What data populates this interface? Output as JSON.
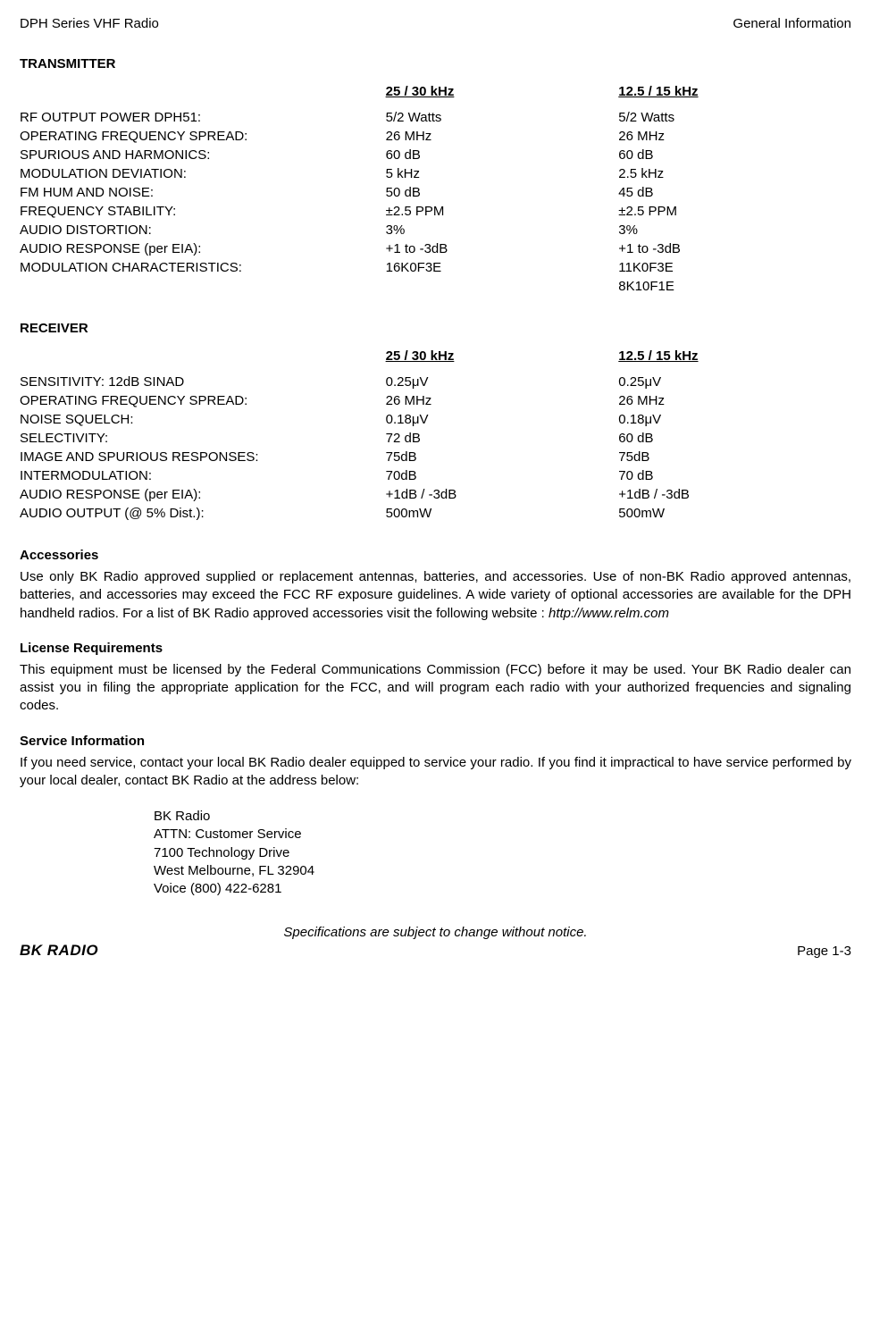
{
  "header": {
    "left": "DPH Series VHF Radio",
    "right": "General Information"
  },
  "transmitter": {
    "title": "TRANSMITTER",
    "col1_header": "25 / 30 kHz",
    "col2_header": "12.5 / 15 kHz",
    "rows": [
      {
        "label": "RF OUTPUT POWER DPH51:",
        "v1": "5/2 Watts",
        "v2": "5/2 Watts",
        "gap": true
      },
      {
        "label": "OPERATING FREQUENCY SPREAD:",
        "v1": "26 MHz",
        "v2": "26 MHz"
      },
      {
        "label": "SPURIOUS AND HARMONICS:",
        "v1": "60 dB",
        "v2": "60 dB"
      },
      {
        "label": "MODULATION DEVIATION:",
        "v1": "5 kHz",
        "v2": "2.5 kHz"
      },
      {
        "label": "FM HUM AND NOISE:",
        "v1": "50 dB",
        "v2": "45 dB"
      },
      {
        "label": "FREQUENCY STABILITY:",
        "v1": "±2.5 PPM",
        "v2": "±2.5 PPM"
      },
      {
        "label": "AUDIO DISTORTION:",
        "v1": "3%",
        "v2": "3%"
      },
      {
        "label": "AUDIO RESPONSE (per EIA):",
        "v1": "+1 to -3dB",
        "v2": "+1 to -3dB"
      },
      {
        "label": "MODULATION CHARACTERISTICS:",
        "v1": "16K0F3E",
        "v2": "11K0F3E",
        "gap": true
      },
      {
        "label": "",
        "v1": "",
        "v2": "8K10F1E"
      }
    ]
  },
  "receiver": {
    "title": "RECEIVER",
    "col1_header": "25 / 30 kHz",
    "col2_header": "12.5 / 15 kHz",
    "rows": [
      {
        "label": "SENSITIVITY: 12dB SINAD",
        "v1": "0.25μV",
        "v2": "0.25μV",
        "gap": true
      },
      {
        "label": "OPERATING FREQUENCY SPREAD:",
        "v1": "26 MHz",
        "v2": "26 MHz"
      },
      {
        "label": "NOISE SQUELCH:",
        "v1": "0.18μV",
        "v2": "0.18μV"
      },
      {
        "label": "SELECTIVITY:",
        "v1": "72 dB",
        "v2": "60 dB"
      },
      {
        "label": "IMAGE AND SPURIOUS RESPONSES:",
        "v1": "75dB",
        "v2": "75dB"
      },
      {
        "label": "INTERMODULATION:",
        "v1": "70dB",
        "v2": "70 dB"
      },
      {
        "label": "AUDIO RESPONSE (per EIA):",
        "v1": "+1dB / -3dB",
        "v2": "+1dB / -3dB"
      },
      {
        "label": "AUDIO OUTPUT (@ 5% Dist.):",
        "v1": "500mW",
        "v2": "500mW"
      }
    ]
  },
  "accessories": {
    "title": "Accessories",
    "text_a": "Use only BK Radio approved supplied or replacement antennas, batteries, and accessories. Use of non-BK Radio approved antennas, batteries, and accessories may exceed the FCC RF exposure guidelines. A wide variety of optional accessories are available for the DPH handheld radios. For a list of BK Radio approved accessories visit the following website : ",
    "url": "http://www.relm.com"
  },
  "license": {
    "title": "License Requirements",
    "text": "This equipment must be licensed by the Federal Communications Commission (FCC) before it may be used. Your BK Radio dealer can assist you in filing the appropriate application for the FCC, and will program each radio with your authorized frequencies and signaling codes."
  },
  "service": {
    "title": "Service Information",
    "text": "If you need service, contact your local BK Radio dealer equipped to service your radio. If you find it impractical to have service performed by your local dealer, contact BK Radio at the address below:",
    "address": [
      "BK Radio",
      "ATTN: Customer Service",
      "7100 Technology Drive",
      "West Melbourne, FL 32904",
      "Voice    (800) 422-6281"
    ]
  },
  "footer": {
    "note": "Specifications are subject to change without notice.",
    "brand": "BK RADIO",
    "page": "Page 1-3"
  }
}
